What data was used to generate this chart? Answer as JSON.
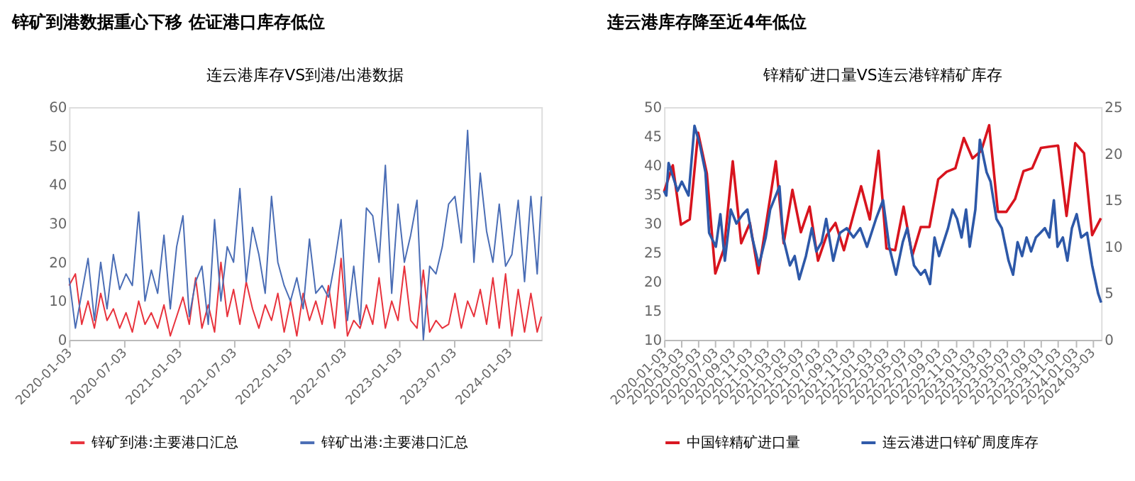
{
  "chart_data": [
    {
      "type": "line",
      "title": "锌矿到港数据重心下移 佐证港口库存低位",
      "subtitle": "连云港库存VS到港/出港数据",
      "legend": "bottom",
      "grid": false,
      "x": [
        "2020-01-03",
        "2020-01-24",
        "2020-02-14",
        "2020-03-06",
        "2020-03-27",
        "2020-04-17",
        "2020-05-08",
        "2020-05-29",
        "2020-06-19",
        "2020-07-10",
        "2020-07-31",
        "2020-08-21",
        "2020-09-11",
        "2020-10-02",
        "2020-10-23",
        "2020-11-13",
        "2020-12-04",
        "2020-12-25",
        "2021-01-15",
        "2021-02-05",
        "2021-02-26",
        "2021-03-19",
        "2021-04-09",
        "2021-04-30",
        "2021-05-21",
        "2021-06-11",
        "2021-07-02",
        "2021-07-23",
        "2021-08-13",
        "2021-09-03",
        "2021-09-24",
        "2021-10-15",
        "2021-11-05",
        "2021-11-26",
        "2021-12-17",
        "2022-01-07",
        "2022-01-28",
        "2022-02-18",
        "2022-03-11",
        "2022-04-01",
        "2022-04-22",
        "2022-05-13",
        "2022-06-03",
        "2022-06-24",
        "2022-07-15",
        "2022-08-05",
        "2022-08-26",
        "2022-09-16",
        "2022-10-07",
        "2022-10-28",
        "2022-11-18",
        "2022-12-09",
        "2022-12-30",
        "2023-01-20",
        "2023-02-10",
        "2023-03-03",
        "2023-03-24",
        "2023-04-14",
        "2023-05-05",
        "2023-05-26",
        "2023-06-16",
        "2023-07-07",
        "2023-07-28",
        "2023-08-18",
        "2023-09-08",
        "2023-09-29",
        "2023-10-20",
        "2023-11-10",
        "2023-12-01",
        "2023-12-22",
        "2024-01-12",
        "2024-02-02",
        "2024-02-23",
        "2024-03-15",
        "2024-04-05",
        "2024-04-19"
      ],
      "series": [
        {
          "name": "锌矿到港:主要港口汇总",
          "color": "#e8323c",
          "values": [
            14,
            17,
            4,
            10,
            3,
            12,
            5,
            8,
            3,
            7,
            2,
            10,
            4,
            7,
            3,
            9,
            1,
            6,
            11,
            4,
            16,
            3,
            9,
            2,
            20,
            6,
            13,
            4,
            15,
            8,
            3,
            9,
            5,
            12,
            2,
            10,
            1,
            12,
            5,
            10,
            4,
            14,
            3,
            21,
            1,
            5,
            3,
            9,
            4,
            16,
            3,
            10,
            5,
            19,
            5,
            3,
            18,
            2,
            5,
            3,
            4,
            12,
            3,
            10,
            6,
            13,
            4,
            16,
            3,
            17,
            1,
            13,
            2,
            12,
            2,
            6
          ]
        },
        {
          "name": "锌矿出港:主要港口汇总",
          "color": "#4a6db5",
          "values": [
            16,
            3,
            12,
            21,
            5,
            20,
            8,
            22,
            13,
            17,
            14,
            33,
            10,
            18,
            12,
            27,
            8,
            24,
            32,
            6,
            15,
            19,
            4,
            31,
            10,
            24,
            20,
            39,
            15,
            29,
            22,
            12,
            37,
            20,
            14,
            10,
            16,
            8,
            26,
            12,
            14,
            11,
            20,
            31,
            5,
            19,
            4,
            34,
            32,
            20,
            45,
            12,
            35,
            20,
            27,
            36,
            0,
            19,
            17,
            24,
            35,
            37,
            25,
            54,
            20,
            43,
            28,
            20,
            35,
            19,
            22,
            36,
            15,
            37,
            17,
            37
          ]
        }
      ],
      "xlim": [
        "2020-01-03",
        "2024-04-19"
      ],
      "xticks": [
        "2020-01-03",
        "2020-07-03",
        "2021-01-03",
        "2021-07-03",
        "2022-01-03",
        "2022-07-03",
        "2023-01-03",
        "2023-07-03",
        "2024-01-03"
      ],
      "ylim": [
        0,
        60
      ],
      "yticks": [
        0,
        10,
        20,
        30,
        40,
        50,
        60
      ]
    },
    {
      "type": "line",
      "title": "连云港库存降至近4年低位",
      "subtitle": "锌精矿进口量VS连云港锌精矿库存",
      "legend": "bottom",
      "grid": false,
      "series": [
        {
          "name": "中国锌精矿进口量",
          "color": "#d8141e",
          "x": [
            "2020-01-03",
            "2020-02-03",
            "2020-03-03",
            "2020-04-03",
            "2020-05-03",
            "2020-06-03",
            "2020-07-03",
            "2020-08-03",
            "2020-09-03",
            "2020-10-03",
            "2020-11-03",
            "2020-12-03",
            "2021-01-03",
            "2021-02-03",
            "2021-03-03",
            "2021-04-03",
            "2021-05-03",
            "2021-06-03",
            "2021-07-03",
            "2021-08-03",
            "2021-09-03",
            "2021-10-03",
            "2021-11-03",
            "2021-12-03",
            "2022-01-03",
            "2022-02-03",
            "2022-03-03",
            "2022-04-03",
            "2022-05-03",
            "2022-06-03",
            "2022-07-03",
            "2022-08-03",
            "2022-09-03",
            "2022-10-03",
            "2022-11-03",
            "2022-12-03",
            "2023-01-03",
            "2023-02-03",
            "2023-03-03",
            "2023-04-03",
            "2023-05-03",
            "2023-06-03",
            "2023-07-03",
            "2023-08-03",
            "2023-09-03",
            "2023-10-03",
            "2023-11-03",
            "2023-12-03",
            "2024-01-03",
            "2024-02-03",
            "2024-03-03",
            "2024-04-03"
          ],
          "values": [
            35.5,
            40,
            29.8,
            30.7,
            45.6,
            38.6,
            21.4,
            25.7,
            40.7,
            26.6,
            30.1,
            21.4,
            31,
            40.7,
            26.6,
            35.8,
            28.5,
            32.9,
            23.6,
            28,
            30.1,
            25.4,
            31,
            36.4,
            30.7,
            42.5,
            25.7,
            25.4,
            32.9,
            24.5,
            29.4,
            29.4,
            37.6,
            38.9,
            39.5,
            44.7,
            41.2,
            42.5,
            46.9,
            32,
            32,
            34.2,
            39,
            39.5,
            43,
            43.2,
            43.4,
            31.3,
            43.8,
            42.1,
            28,
            30.9
          ]
        },
        {
          "name": "连云港进口锌矿周度库存",
          "color": "#2d58a8",
          "axis": "y2",
          "x": [
            "2020-01-03",
            "2020-01-11",
            "2020-01-19",
            "2020-02-20",
            "2020-03-06",
            "2020-03-30",
            "2020-04-20",
            "2020-05-09",
            "2020-05-29",
            "2020-06-11",
            "2020-07-05",
            "2020-07-21",
            "2020-08-06",
            "2020-08-27",
            "2020-09-16",
            "2020-10-09",
            "2020-10-25",
            "2020-11-11",
            "2020-12-05",
            "2020-12-29",
            "2021-01-14",
            "2021-02-16",
            "2021-03-01",
            "2021-03-25",
            "2021-04-11",
            "2021-04-27",
            "2021-05-21",
            "2021-06-11",
            "2021-06-27",
            "2021-07-16",
            "2021-08-01",
            "2021-08-26",
            "2021-09-19",
            "2021-10-13",
            "2021-11-06",
            "2021-11-30",
            "2021-12-24",
            "2022-01-25",
            "2022-02-19",
            "2022-03-13",
            "2022-04-06",
            "2022-04-30",
            "2022-05-16",
            "2022-06-09",
            "2022-07-03",
            "2022-07-18",
            "2022-08-05",
            "2022-08-21",
            "2022-09-06",
            "2022-10-08",
            "2022-10-24",
            "2022-11-09",
            "2022-11-25",
            "2022-12-11",
            "2022-12-24",
            "2023-01-13",
            "2023-01-29",
            "2023-02-22",
            "2023-03-08",
            "2023-03-29",
            "2023-04-17",
            "2023-05-11",
            "2023-05-27",
            "2023-06-12",
            "2023-06-28",
            "2023-07-14",
            "2023-07-30",
            "2023-08-16",
            "2023-09-01",
            "2023-09-17",
            "2023-10-03",
            "2023-10-19",
            "2023-11-01",
            "2023-11-20",
            "2023-12-06",
            "2023-12-22",
            "2024-01-08",
            "2024-01-24",
            "2024-02-14",
            "2024-03-03",
            "2024-03-24",
            "2024-04-04"
          ],
          "values": [
            16,
            15.5,
            19,
            16,
            17,
            15.5,
            23,
            21,
            18,
            11.5,
            10,
            13.5,
            8.5,
            14,
            12.5,
            13.5,
            14,
            11,
            8,
            11,
            14,
            16.5,
            11,
            8,
            9,
            6.5,
            9,
            12,
            9.5,
            10.5,
            13,
            8.5,
            11.5,
            12,
            11,
            12,
            10,
            13,
            15,
            10,
            7,
            10.5,
            12,
            8,
            7,
            7.5,
            6,
            11,
            9,
            12,
            14,
            13,
            11,
            14,
            10,
            14,
            21.5,
            18,
            17,
            13,
            12,
            8.5,
            7,
            10.5,
            9,
            11,
            9.5,
            11,
            11.5,
            12,
            11,
            15,
            10,
            11,
            8.5,
            12,
            13.5,
            11,
            11.5,
            8,
            5,
            4
          ]
        }
      ],
      "xlim": [
        "2020-01-03",
        "2024-04-04"
      ],
      "xticks": [
        "2020-01-03",
        "2020-03-03",
        "2020-05-03",
        "2020-07-03",
        "2020-09-03",
        "2020-11-03",
        "2021-01-03",
        "2021-03-03",
        "2021-05-03",
        "2021-07-03",
        "2021-09-03",
        "2021-11-03",
        "2022-01-03",
        "2022-03-03",
        "2022-05-03",
        "2022-07-03",
        "2022-09-03",
        "2022-11-03",
        "2023-01-03",
        "2023-03-03",
        "2023-05-03",
        "2023-07-03",
        "2023-09-03",
        "2023-11-03",
        "2024-01-03",
        "2024-03-03"
      ],
      "ylim": [
        10,
        50
      ],
      "yticks": [
        10,
        15,
        20,
        25,
        30,
        35,
        40,
        45,
        50
      ],
      "y2lim": [
        0,
        25
      ],
      "y2ticks": [
        0,
        5,
        10,
        15,
        20,
        25
      ]
    }
  ]
}
